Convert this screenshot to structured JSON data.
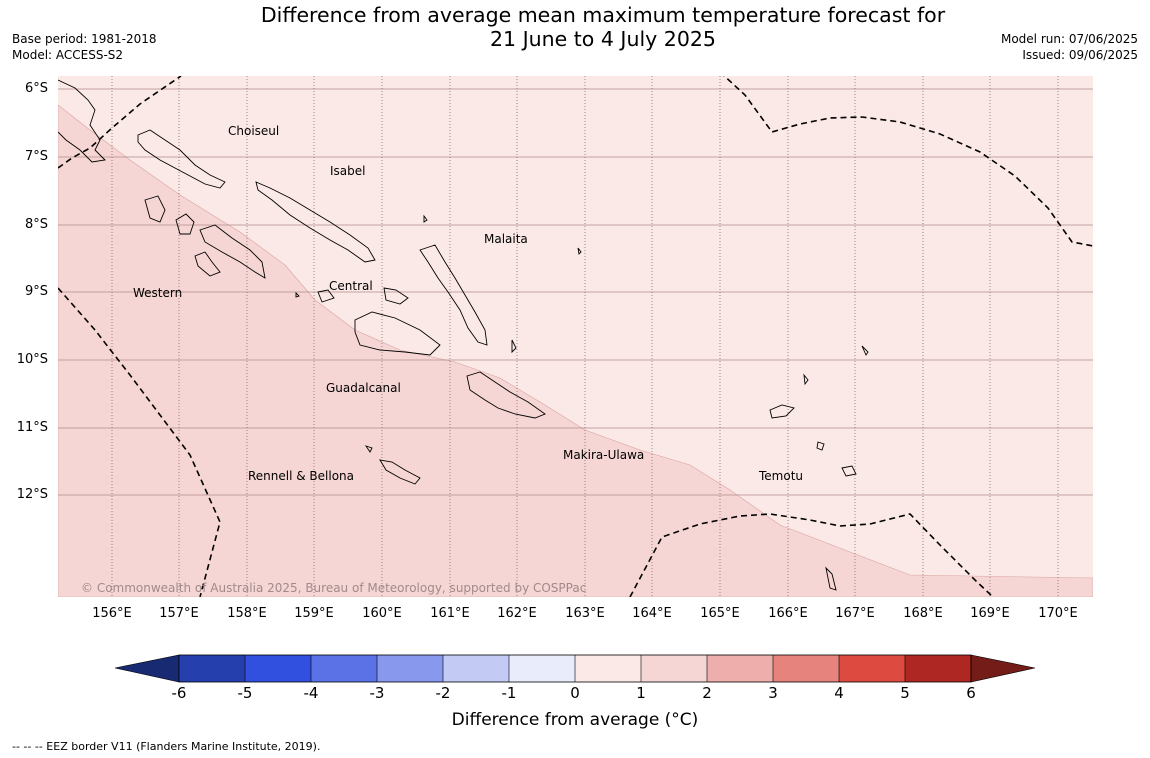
{
  "header": {
    "title_line1": "Difference from average mean maximum temperature forecast for",
    "title_line2": "21 June to 4 July 2025",
    "base_period": "Base period: 1981-2018",
    "model": "Model: ACCESS-S2",
    "model_run": "Model run: 07/06/2025",
    "issued": "Issued: 09/06/2025"
  },
  "map": {
    "latitude_labels": [
      "6°S",
      "7°S",
      "8°S",
      "9°S",
      "10°S",
      "11°S",
      "12°S"
    ],
    "longitude_labels": [
      "156°E",
      "157°E",
      "158°E",
      "159°E",
      "160°E",
      "161°E",
      "162°E",
      "163°E",
      "164°E",
      "165°E",
      "166°E",
      "167°E",
      "168°E",
      "169°E",
      "170°E"
    ],
    "places": [
      "Choiseul",
      "Isabel",
      "Malaita",
      "Western",
      "Central",
      "Guadalcanal",
      "Makira-Ulawa",
      "Rennell & Bellona",
      "Temotu"
    ],
    "copyright": "© Commonwealth of Australia 2025, Bureau of Meteorology, supported by COSPPac",
    "colors": {
      "anomaly_0_1": "#fbe9e7",
      "anomaly_1_2": "#f5d6d4",
      "eez_line": "#000000"
    }
  },
  "colorbar": {
    "ticks": [
      "-6",
      "-5",
      "-4",
      "-3",
      "-2",
      "-1",
      "0",
      "1",
      "2",
      "3",
      "4",
      "5",
      "6"
    ],
    "colors": [
      "#172a72",
      "#2540ad",
      "#3150e0",
      "#5a72e6",
      "#8798ed",
      "#c3cbf5",
      "#e8ecfb",
      "#fbe9e7",
      "#f5d6d4",
      "#eeaeab",
      "#e6837d",
      "#dc4a40",
      "#ae2722",
      "#741c18"
    ],
    "label": "Difference from average (°C)"
  },
  "footnote": "-- -- -- EEZ border V11 (Flanders Marine Institute, 2019)."
}
